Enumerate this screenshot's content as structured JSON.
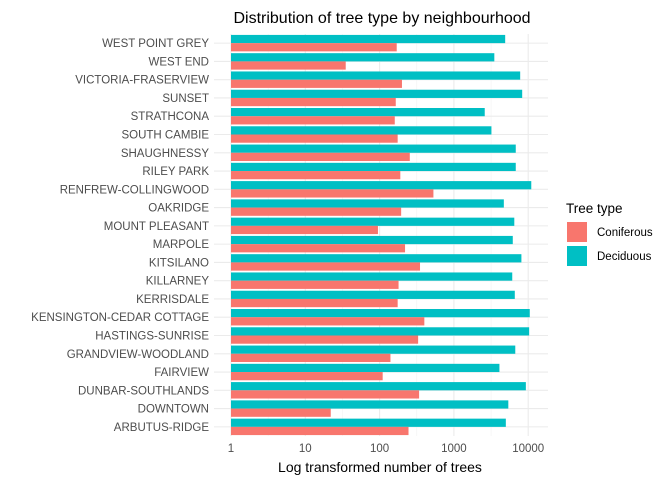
{
  "chart_data": {
    "type": "bar",
    "orientation": "horizontal",
    "title": "Distribution of tree type by neighbourhood",
    "xlabel": "Log transformed number of trees",
    "ylabel": "",
    "x_scale": "log10",
    "xlim": [
      1,
      16000
    ],
    "x_ticks": [
      "1",
      "10",
      "100",
      "1000",
      "10000"
    ],
    "grid": true,
    "legend": {
      "title": "Tree type",
      "position": "right"
    },
    "colors": {
      "Coniferous": "#F8766D",
      "Deciduous": "#00BFC4"
    },
    "categories": [
      "WEST POINT GREY",
      "WEST END",
      "VICTORIA-FRASERVIEW",
      "SUNSET",
      "STRATHCONA",
      "SOUTH CAMBIE",
      "SHAUGHNESSY",
      "RILEY PARK",
      "RENFREW-COLLINGWOOD",
      "OAKRIDGE",
      "MOUNT PLEASANT",
      "MARPOLE",
      "KITSILANO",
      "KILLARNEY",
      "KERRISDALE",
      "KENSINGTON-CEDAR COTTAGE",
      "HASTINGS-SUNRISE",
      "GRANDVIEW-WOODLAND",
      "FAIRVIEW",
      "DUNBAR-SOUTHLANDS",
      "DOWNTOWN",
      "ARBUTUS-RIDGE"
    ],
    "series": [
      {
        "name": "Deciduous",
        "values": [
          4900,
          3500,
          7800,
          8300,
          2600,
          3200,
          6800,
          6800,
          11000,
          4700,
          6500,
          6200,
          8100,
          6100,
          6600,
          10500,
          10300,
          6700,
          4100,
          9300,
          5400,
          5000
        ]
      },
      {
        "name": "Coniferous",
        "values": [
          170,
          35,
          200,
          165,
          160,
          175,
          255,
          190,
          530,
          195,
          95,
          220,
          350,
          180,
          175,
          400,
          330,
          140,
          110,
          340,
          22,
          245
        ]
      }
    ]
  }
}
